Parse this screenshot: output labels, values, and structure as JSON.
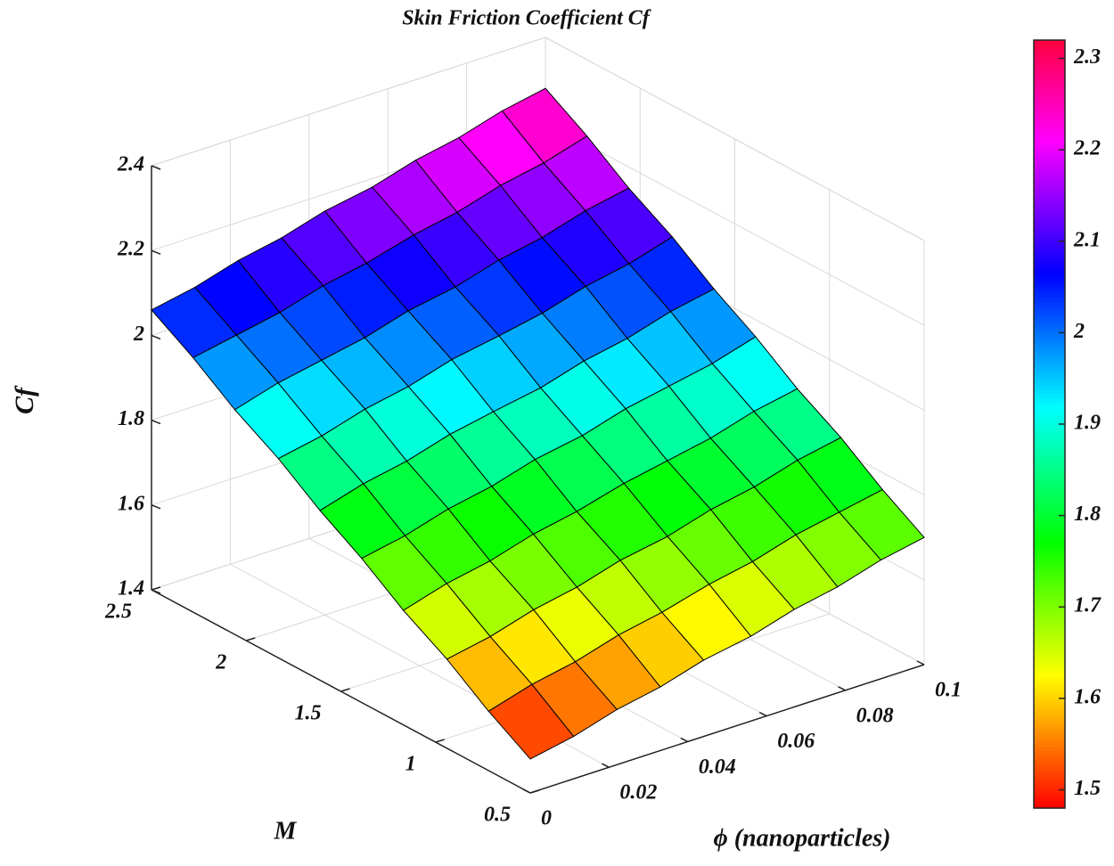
{
  "chart_data": {
    "type": "surface",
    "title": "Skin Friction Coefficient Cf",
    "xlabel": "ϕ (nanoparticles)",
    "ylabel": "M",
    "zlabel": "Cf",
    "x": [
      0,
      0.011,
      0.022,
      0.033,
      0.044,
      0.056,
      0.067,
      0.078,
      0.089,
      0.1
    ],
    "y": [
      0.5,
      0.72,
      0.94,
      1.17,
      1.39,
      1.61,
      1.83,
      2.06,
      2.28,
      2.5
    ],
    "z": [
      [
        1.48,
        1.5,
        1.53,
        1.55,
        1.58,
        1.6,
        1.63,
        1.65,
        1.68,
        1.7
      ],
      [
        1.54,
        1.57,
        1.59,
        1.62,
        1.64,
        1.67,
        1.69,
        1.72,
        1.74,
        1.76
      ],
      [
        1.61,
        1.63,
        1.66,
        1.68,
        1.71,
        1.73,
        1.76,
        1.78,
        1.81,
        1.83
      ],
      [
        1.67,
        1.7,
        1.72,
        1.75,
        1.77,
        1.8,
        1.82,
        1.84,
        1.87,
        1.89
      ],
      [
        1.74,
        1.76,
        1.79,
        1.81,
        1.84,
        1.86,
        1.89,
        1.91,
        1.93,
        1.96
      ],
      [
        1.8,
        1.83,
        1.85,
        1.88,
        1.9,
        1.92,
        1.95,
        1.97,
        2.0,
        2.02
      ],
      [
        1.87,
        1.89,
        1.92,
        1.94,
        1.97,
        1.99,
        2.01,
        2.04,
        2.06,
        2.09
      ],
      [
        1.93,
        1.96,
        1.98,
        2.0,
        2.03,
        2.05,
        2.08,
        2.1,
        2.13,
        2.15
      ],
      [
        2.0,
        2.02,
        2.04,
        2.07,
        2.09,
        2.12,
        2.14,
        2.17,
        2.19,
        2.22
      ],
      [
        2.06,
        2.08,
        2.11,
        2.13,
        2.16,
        2.18,
        2.21,
        2.23,
        2.26,
        2.28
      ]
    ],
    "xlim": [
      0,
      0.1
    ],
    "ylim": [
      0.5,
      2.5
    ],
    "zlim": [
      1.4,
      2.4
    ],
    "xticks": [
      0,
      0.02,
      0.04,
      0.06,
      0.08,
      0.1
    ],
    "yticks": [
      0.5,
      1,
      1.5,
      2,
      2.5
    ],
    "zticks": [
      1.4,
      1.6,
      1.8,
      2,
      2.2,
      2.4
    ],
    "grid": true,
    "colormap": "hsv",
    "clim": [
      1.48,
      2.32
    ],
    "cticks": [
      1.5,
      1.6,
      1.7,
      1.8,
      1.9,
      2,
      2.1,
      2.2,
      2.3
    ]
  }
}
